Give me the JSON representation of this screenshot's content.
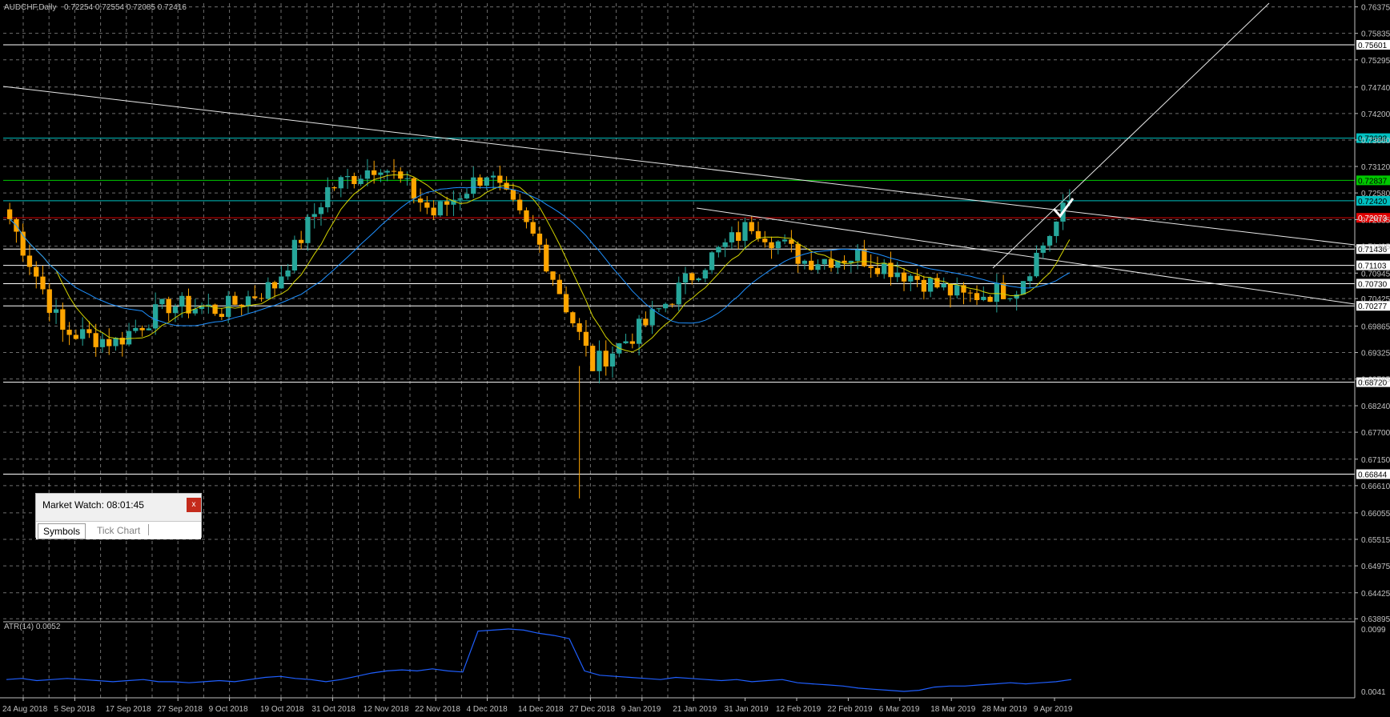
{
  "window": {
    "symbol_title": "AUDCHF,Daily",
    "ohlc_text": "0.72254 0.72554 0.72085 0.72416",
    "atr_label": "ATR(14) 0.0052"
  },
  "colors": {
    "background": "#000000",
    "grid": "#c8c8c8",
    "bull_candle": "#26a69a",
    "bear_candle": "#ffa500",
    "fast_ma": "#d4d400",
    "slow_ma": "#1e90ff",
    "atr_line": "#1f5fff",
    "cyan_level": "#00c0c0",
    "green_level": "#00c800",
    "red_level": "#e00000",
    "white_level": "#ffffff"
  },
  "market_watch": {
    "title": "Market Watch: 08:01:45",
    "close_label": "x",
    "tab_symbols": "Symbols",
    "tab_tick_chart": "Tick Chart"
  },
  "chart_data": {
    "type": "candlestick",
    "title": "AUDCHF,Daily",
    "price_axis_ticks": [
      "0.76375",
      "0.75835",
      "0.75295",
      "0.74740",
      "0.74200",
      "0.73660",
      "0.73120",
      "0.72580",
      "0.72035",
      "0.71495",
      "0.70945",
      "0.70425",
      "0.69865",
      "0.69325",
      "0.68785",
      "0.68240",
      "0.67700",
      "0.67150",
      "0.66610",
      "0.66055",
      "0.65515",
      "0.64975",
      "0.64425",
      "0.63895"
    ],
    "level_labels": [
      {
        "value": "0.75601",
        "color": "white"
      },
      {
        "value": "0.73698",
        "color": "cyan"
      },
      {
        "value": "0.72837",
        "color": "green"
      },
      {
        "value": "0.72420",
        "color": "cyan"
      },
      {
        "value": "0.72073",
        "color": "red"
      },
      {
        "value": "0.71436",
        "color": "white"
      },
      {
        "value": "0.71103",
        "color": "white"
      },
      {
        "value": "0.70730",
        "color": "white"
      },
      {
        "value": "0.70277",
        "color": "white"
      },
      {
        "value": "0.68720",
        "color": "white"
      },
      {
        "value": "0.66844",
        "color": "white"
      }
    ],
    "date_axis_ticks": [
      "24 Aug 2018",
      "5 Sep 2018",
      "17 Sep 2018",
      "27 Sep 2018",
      "9 Oct 2018",
      "19 Oct 2018",
      "31 Oct 2018",
      "12 Nov 2018",
      "22 Nov 2018",
      "4 Dec 2018",
      "14 Dec 2018",
      "27 Dec 2018",
      "9 Jan 2019",
      "21 Jan 2019",
      "31 Jan 2019",
      "12 Feb 2019",
      "22 Feb 2019",
      "6 Mar 2019",
      "18 Mar 2019",
      "28 Mar 2019",
      "9 Apr 2019"
    ],
    "price_range": [
      0.6385,
      0.7645
    ],
    "key_closes": [
      {
        "date": "24 Aug 2018",
        "close": 0.7205
      },
      {
        "date": "5 Sep 2018",
        "close": 0.6975
      },
      {
        "date": "17 Sep 2018",
        "close": 0.6955
      },
      {
        "date": "27 Sep 2018",
        "close": 0.703
      },
      {
        "date": "9 Oct 2018",
        "close": 0.702
      },
      {
        "date": "19 Oct 2018",
        "close": 0.707
      },
      {
        "date": "31 Oct 2018",
        "close": 0.7265
      },
      {
        "date": "12 Nov 2018",
        "close": 0.732
      },
      {
        "date": "22 Nov 2018",
        "close": 0.7215
      },
      {
        "date": "4 Dec 2018",
        "close": 0.73
      },
      {
        "date": "14 Dec 2018",
        "close": 0.715
      },
      {
        "date": "27 Dec 2018",
        "close": 0.6905
      },
      {
        "date": "9 Jan 2019",
        "close": 0.699
      },
      {
        "date": "21 Jan 2019",
        "close": 0.7105
      },
      {
        "date": "31 Jan 2019",
        "close": 0.7195
      },
      {
        "date": "12 Feb 2019",
        "close": 0.712
      },
      {
        "date": "22 Feb 2019",
        "close": 0.713
      },
      {
        "date": "6 Mar 2019",
        "close": 0.709
      },
      {
        "date": "18 Mar 2019",
        "close": 0.7045
      },
      {
        "date": "28 Mar 2019",
        "close": 0.7065
      },
      {
        "date": "9 Apr 2019",
        "close": 0.7242
      }
    ],
    "atr": {
      "label": "ATR(14) 0.0052",
      "axis_ticks": [
        "0.0099",
        "0.0041"
      ],
      "range": [
        0.0038,
        0.0102
      ],
      "values": [
        0.0052,
        0.0053,
        0.0051,
        0.0052,
        0.0053,
        0.0052,
        0.0051,
        0.005,
        0.0051,
        0.0052,
        0.005,
        0.005,
        0.0049,
        0.005,
        0.0051,
        0.005,
        0.0052,
        0.0054,
        0.0055,
        0.0053,
        0.0052,
        0.005,
        0.0052,
        0.0055,
        0.0058,
        0.006,
        0.0061,
        0.006,
        0.0062,
        0.006,
        0.0059,
        0.0097,
        0.0098,
        0.0099,
        0.0098,
        0.0095,
        0.0093,
        0.009,
        0.006,
        0.0056,
        0.0055,
        0.0054,
        0.0053,
        0.0052,
        0.0054,
        0.0053,
        0.0052,
        0.0051,
        0.0052,
        0.005,
        0.0051,
        0.0052,
        0.0049,
        0.0048,
        0.0047,
        0.0046,
        0.0044,
        0.0043,
        0.0042,
        0.0041,
        0.0042,
        0.0045,
        0.0046,
        0.0046,
        0.0047,
        0.0048,
        0.0049,
        0.0048,
        0.0049,
        0.005,
        0.0052
      ]
    }
  }
}
